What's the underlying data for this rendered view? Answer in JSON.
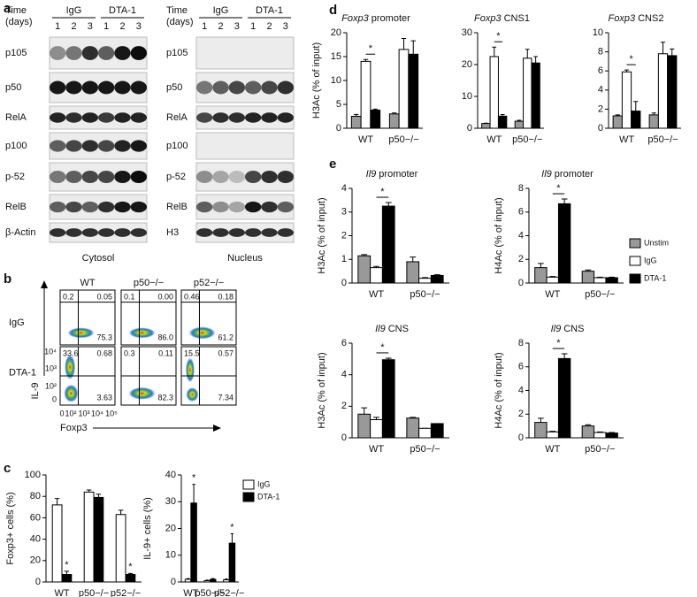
{
  "panel_labels": [
    "a",
    "b",
    "c",
    "d",
    "e"
  ],
  "panel_a": {
    "blots": [
      {
        "time_label": "Time",
        "time_unit": "(days)",
        "groups": [
          "IgG",
          "DTA-1"
        ],
        "lanes": [
          1,
          2,
          3,
          1,
          2,
          3
        ],
        "rows": [
          "p105",
          "p50",
          "RelA",
          "p100",
          "p-52",
          "RelB",
          "β-Actin"
        ],
        "caption": "Cytosol"
      },
      {
        "time_label": "Time",
        "time_unit": "(days)",
        "groups": [
          "IgG",
          "DTA-1"
        ],
        "lanes": [
          1,
          2,
          3,
          1,
          2,
          3
        ],
        "rows": [
          "p105",
          "p50",
          "RelA",
          "p100",
          "p-52",
          "RelB",
          "H3"
        ],
        "caption": "Nucleus"
      }
    ]
  },
  "panel_b": {
    "columns": [
      "WT",
      "p50−/−",
      "p52−/−"
    ],
    "rows": [
      "IgG",
      "DTA-1"
    ],
    "y_axis": "IL-9",
    "x_axis": "Foxp3",
    "x_ticks": [
      "0",
      "10²",
      "10³",
      "10⁴",
      "10⁵"
    ],
    "y_ticks": [
      "10⁴",
      "10³",
      "10²",
      "0"
    ],
    "quadrants": [
      [
        {
          "ul": "0.2",
          "ur": "0.05",
          "lr": "75.3"
        },
        {
          "ul": "0.1",
          "ur": "0.00",
          "lr": "86.0"
        },
        {
          "ul": "0.46",
          "ur": "0.18",
          "lr": "61.2"
        }
      ],
      [
        {
          "ul": "33.6",
          "ur": "0.68",
          "lr": "3.63"
        },
        {
          "ul": "0.3",
          "ur": "0.11",
          "lr": "82.3"
        },
        {
          "ul": "15.5",
          "ur": "0.57",
          "lr": "7.34"
        }
      ]
    ]
  },
  "chart_data": [
    {
      "type": "bar",
      "y_label": "Foxp3+ cells (%)",
      "categories": [
        "WT",
        "p50−/−",
        "p52−/−"
      ],
      "ylim": [
        0,
        100
      ],
      "yticks": [
        0,
        20,
        40,
        60,
        80,
        100
      ],
      "series": [
        {
          "name": "IgG",
          "color": "#ffffff",
          "values": [
            72,
            84,
            63
          ],
          "errors": [
            6,
            2,
            4
          ]
        },
        {
          "name": "DTA-1",
          "color": "#000000",
          "values": [
            7,
            79,
            7
          ],
          "errors": [
            3,
            3,
            1
          ],
          "markers": [
            "*",
            null,
            "*"
          ]
        }
      ]
    },
    {
      "type": "bar",
      "y_label": "IL-9+ cells (%)",
      "categories": [
        "WT",
        "p50−/−",
        "p52−/−"
      ],
      "ylim": [
        0,
        40
      ],
      "yticks": [
        0,
        10,
        20,
        30,
        40
      ],
      "legend": "right",
      "series": [
        {
          "name": "IgG",
          "color": "#ffffff",
          "values": [
            1,
            0.5,
            0.8
          ],
          "errors": [
            0.3,
            0.2,
            0.3
          ]
        },
        {
          "name": "DTA-1",
          "color": "#000000",
          "values": [
            29.5,
            1,
            14.5
          ],
          "errors": [
            7,
            0.3,
            3.5
          ],
          "markers": [
            "*",
            null,
            "*"
          ]
        }
      ]
    },
    {
      "type": "bar",
      "title": {
        "gene": "Foxp3",
        "text": "promoter"
      },
      "y_label": "H3Ac (% of input)",
      "categories": [
        "WT",
        "p50−/−"
      ],
      "ylim": [
        0,
        20
      ],
      "yticks": [
        0,
        5,
        10,
        15,
        20
      ],
      "comparison": "*",
      "series": [
        {
          "name": "Unstim",
          "color": "#999999",
          "values": [
            2.5,
            3
          ],
          "errors": [
            0.4,
            0.2
          ]
        },
        {
          "name": "IgG",
          "color": "#ffffff",
          "values": [
            14,
            16.5
          ],
          "errors": [
            0.4,
            2.3
          ]
        },
        {
          "name": "DTA-1",
          "color": "#000000",
          "values": [
            3.8,
            15.5
          ],
          "errors": [
            0.2,
            2.8
          ]
        }
      ]
    },
    {
      "type": "bar",
      "title": {
        "gene": "Foxp3",
        "text": "CNS1"
      },
      "categories": [
        "WT",
        "p50−/−"
      ],
      "ylim": [
        0,
        30
      ],
      "yticks": [
        0,
        10,
        20,
        30
      ],
      "comparison": "*",
      "series": [
        {
          "name": "Unstim",
          "color": "#999999",
          "values": [
            1.5,
            2.2
          ],
          "errors": [
            0.1,
            0.3
          ]
        },
        {
          "name": "IgG",
          "color": "#ffffff",
          "values": [
            22.5,
            22
          ],
          "errors": [
            3,
            2.8
          ]
        },
        {
          "name": "DTA-1",
          "color": "#000000",
          "values": [
            3.8,
            20.5
          ],
          "errors": [
            0.5,
            2
          ]
        }
      ]
    },
    {
      "type": "bar",
      "title": {
        "gene": "Foxp3",
        "text": "CNS2"
      },
      "categories": [
        "WT",
        "p50−/−"
      ],
      "ylim": [
        0,
        10
      ],
      "yticks": [
        0,
        2,
        4,
        6,
        8,
        10
      ],
      "comparison": "*",
      "series": [
        {
          "name": "Unstim",
          "color": "#999999",
          "values": [
            1.3,
            1.4
          ],
          "errors": [
            0.1,
            0.2
          ]
        },
        {
          "name": "IgG",
          "color": "#ffffff",
          "values": [
            5.9,
            7.8
          ],
          "errors": [
            0.2,
            1.2
          ]
        },
        {
          "name": "DTA-1",
          "color": "#000000",
          "values": [
            1.8,
            7.6
          ],
          "errors": [
            1,
            0.7
          ]
        }
      ]
    },
    {
      "type": "bar",
      "title": {
        "gene": "Il9",
        "text": "promoter"
      },
      "y_label": "H3Ac (% of input)",
      "categories": [
        "WT",
        "p50−/−"
      ],
      "ylim": [
        0,
        4
      ],
      "yticks": [
        0,
        1,
        2,
        3,
        4
      ],
      "comparison": "*",
      "series": [
        {
          "name": "Unstim",
          "color": "#999999",
          "values": [
            1.15,
            0.9
          ],
          "errors": [
            0.05,
            0.2
          ]
        },
        {
          "name": "IgG",
          "color": "#ffffff",
          "values": [
            0.65,
            0.2
          ],
          "errors": [
            0.05,
            0.03
          ]
        },
        {
          "name": "DTA-1",
          "color": "#000000",
          "values": [
            3.25,
            0.32
          ],
          "errors": [
            0.15,
            0.03
          ]
        }
      ]
    },
    {
      "type": "bar",
      "title": {
        "gene": "Il9",
        "text": "promoter"
      },
      "y_label": "H4Ac (% of input)",
      "categories": [
        "WT",
        "p50−/−"
      ],
      "ylim": [
        0,
        8
      ],
      "yticks": [
        0,
        2,
        4,
        6,
        8
      ],
      "comparison": "*",
      "legend": "right",
      "series": [
        {
          "name": "Unstim",
          "color": "#999999",
          "values": [
            1.3,
            1.0
          ],
          "errors": [
            0.35,
            0.1
          ]
        },
        {
          "name": "IgG",
          "color": "#ffffff",
          "values": [
            0.5,
            0.45
          ],
          "errors": [
            0.05,
            0.05
          ]
        },
        {
          "name": "DTA-1",
          "color": "#000000",
          "values": [
            6.7,
            0.45
          ],
          "errors": [
            0.4,
            0.05
          ]
        }
      ]
    },
    {
      "type": "bar",
      "title": {
        "gene": "Il9",
        "text": "CNS"
      },
      "y_label": "H3Ac (% of input)",
      "categories": [
        "WT",
        "p50−/−"
      ],
      "ylim": [
        0,
        6
      ],
      "yticks": [
        0,
        2,
        4,
        6
      ],
      "comparison": "*",
      "series": [
        {
          "name": "Unstim",
          "color": "#999999",
          "values": [
            1.5,
            1.25
          ],
          "errors": [
            0.4,
            0.05
          ]
        },
        {
          "name": "IgG",
          "color": "#ffffff",
          "values": [
            1.15,
            0.6
          ],
          "errors": [
            0.15,
            0
          ]
        },
        {
          "name": "DTA-1",
          "color": "#000000",
          "values": [
            4.95,
            0.9
          ],
          "errors": [
            0.1,
            0
          ]
        }
      ]
    },
    {
      "type": "bar",
      "title": {
        "gene": "Il9",
        "text": "CNS"
      },
      "y_label": "H4Ac (% of input)",
      "categories": [
        "WT",
        "p50−/−"
      ],
      "ylim": [
        0,
        8
      ],
      "yticks": [
        0,
        2,
        4,
        6,
        8
      ],
      "comparison": "*",
      "series": [
        {
          "name": "Unstim",
          "color": "#999999",
          "values": [
            1.3,
            1.0
          ],
          "errors": [
            0.35,
            0.1
          ]
        },
        {
          "name": "IgG",
          "color": "#ffffff",
          "values": [
            0.5,
            0.45
          ],
          "errors": [
            0.05,
            0.05
          ]
        },
        {
          "name": "DTA-1",
          "color": "#000000",
          "values": [
            6.7,
            0.4
          ],
          "errors": [
            0.4,
            0.05
          ]
        }
      ]
    }
  ]
}
